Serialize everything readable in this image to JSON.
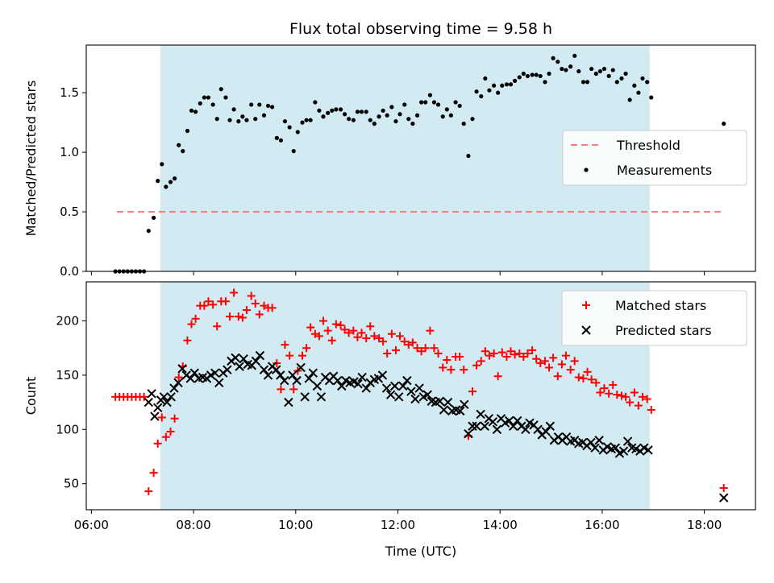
{
  "chart_data": [
    {
      "type": "scatter",
      "title": "Flux total observing time = 9.58 h",
      "ylabel": "Matched/Predicted stars",
      "xlabel": "",
      "xlim": [
        5.9,
        19.0
      ],
      "ylim": [
        0.0,
        1.9
      ],
      "yticks": [
        "0.0",
        "0.5",
        "1.0",
        "1.5"
      ],
      "ytick_values": [
        0.0,
        0.5,
        1.0,
        1.5
      ],
      "observing_window": [
        7.35,
        16.93
      ],
      "window_color": "#add8e6",
      "legend_position": "center-right",
      "threshold": {
        "name": "Threshold",
        "value": 0.5,
        "x": [
          6.5,
          18.4
        ],
        "color": "#f08080",
        "style": "dashed"
      },
      "series": [
        {
          "name": "Measurements",
          "color": "#000000",
          "x": [
            6.47,
            6.55,
            6.63,
            6.71,
            6.79,
            6.87,
            6.95,
            7.03,
            7.12,
            7.22,
            7.3,
            7.38,
            7.46,
            7.55,
            7.63,
            7.71,
            7.79,
            7.88,
            7.96,
            8.04,
            8.13,
            8.21,
            8.29,
            8.38,
            8.46,
            8.54,
            8.63,
            8.71,
            8.79,
            8.88,
            8.96,
            9.04,
            9.13,
            9.21,
            9.29,
            9.38,
            9.46,
            9.54,
            9.63,
            9.71,
            9.79,
            9.88,
            9.96,
            10.04,
            10.13,
            10.21,
            10.29,
            10.38,
            10.46,
            10.54,
            10.63,
            10.71,
            10.79,
            10.88,
            10.96,
            11.04,
            11.13,
            11.21,
            11.29,
            11.38,
            11.46,
            11.54,
            11.63,
            11.71,
            11.79,
            11.88,
            11.96,
            12.04,
            12.13,
            12.21,
            12.29,
            12.38,
            12.46,
            12.54,
            12.63,
            12.71,
            12.79,
            12.88,
            12.96,
            13.04,
            13.13,
            13.21,
            13.29,
            13.38,
            13.46,
            13.54,
            13.63,
            13.71,
            13.79,
            13.88,
            13.96,
            14.04,
            14.13,
            14.21,
            14.29,
            14.38,
            14.46,
            14.54,
            14.63,
            14.71,
            14.79,
            14.88,
            14.96,
            15.04,
            15.13,
            15.21,
            15.29,
            15.38,
            15.46,
            15.54,
            15.63,
            15.71,
            15.79,
            15.88,
            15.96,
            16.04,
            16.13,
            16.21,
            16.29,
            16.38,
            16.46,
            16.54,
            16.63,
            16.71,
            16.79,
            16.88,
            16.96,
            18.38
          ],
          "y": [
            0.0,
            0.0,
            0.0,
            0.0,
            0.0,
            0.0,
            0.0,
            0.0,
            0.34,
            0.45,
            0.76,
            0.9,
            0.71,
            0.75,
            0.78,
            1.06,
            1.01,
            1.18,
            1.35,
            1.34,
            1.41,
            1.46,
            1.46,
            1.4,
            1.28,
            1.53,
            1.46,
            1.27,
            1.36,
            1.26,
            1.3,
            1.27,
            1.4,
            1.28,
            1.4,
            1.31,
            1.39,
            1.38,
            1.12,
            1.1,
            1.26,
            1.21,
            1.01,
            1.17,
            1.25,
            1.27,
            1.27,
            1.42,
            1.35,
            1.3,
            1.33,
            1.35,
            1.36,
            1.36,
            1.32,
            1.28,
            1.27,
            1.34,
            1.34,
            1.34,
            1.27,
            1.24,
            1.3,
            1.35,
            1.31,
            1.38,
            1.26,
            1.32,
            1.4,
            1.28,
            1.24,
            1.31,
            1.42,
            1.42,
            1.48,
            1.42,
            1.4,
            1.3,
            1.36,
            1.31,
            1.42,
            1.39,
            1.24,
            0.97,
            1.28,
            1.51,
            1.47,
            1.62,
            1.52,
            1.56,
            1.5,
            1.56,
            1.57,
            1.57,
            1.6,
            1.63,
            1.66,
            1.64,
            1.65,
            1.65,
            1.64,
            1.59,
            1.66,
            1.79,
            1.76,
            1.7,
            1.69,
            1.72,
            1.81,
            1.68,
            1.59,
            1.59,
            1.7,
            1.66,
            1.68,
            1.7,
            1.64,
            1.69,
            1.59,
            1.62,
            1.66,
            1.44,
            1.56,
            1.5,
            1.62,
            1.59,
            1.46,
            1.24
          ]
        }
      ]
    },
    {
      "type": "scatter",
      "title": "",
      "ylabel": "Count",
      "xlabel": "Time (UTC)",
      "xlim": [
        5.9,
        19.0
      ],
      "ylim": [
        26,
        236
      ],
      "yticks": [
        "50",
        "100",
        "150",
        "200"
      ],
      "ytick_values": [
        50,
        100,
        150,
        200
      ],
      "xticks": [
        "06:00",
        "08:00",
        "10:00",
        "12:00",
        "14:00",
        "16:00",
        "18:00"
      ],
      "xtick_values": [
        6,
        8,
        10,
        12,
        14,
        16,
        18
      ],
      "observing_window": [
        7.35,
        16.93
      ],
      "window_color": "#add8e6",
      "legend_position": "top-right",
      "series": [
        {
          "name": "Matched stars",
          "marker": "plus",
          "color": "#ff0000",
          "x": [
            6.47,
            6.55,
            6.63,
            6.71,
            6.79,
            6.87,
            6.95,
            7.03,
            7.12,
            7.22,
            7.3,
            7.38,
            7.46,
            7.55,
            7.63,
            7.71,
            7.79,
            7.88,
            7.96,
            8.04,
            8.13,
            8.21,
            8.29,
            8.38,
            8.46,
            8.54,
            8.63,
            8.71,
            8.79,
            8.88,
            8.96,
            9.04,
            9.13,
            9.21,
            9.29,
            9.38,
            9.46,
            9.54,
            9.63,
            9.71,
            9.79,
            9.88,
            9.96,
            10.04,
            10.13,
            10.21,
            10.29,
            10.38,
            10.46,
            10.54,
            10.63,
            10.71,
            10.79,
            10.88,
            10.96,
            11.04,
            11.13,
            11.21,
            11.29,
            11.38,
            11.46,
            11.54,
            11.63,
            11.71,
            11.79,
            11.88,
            11.96,
            12.04,
            12.13,
            12.21,
            12.29,
            12.38,
            12.46,
            12.54,
            12.63,
            12.71,
            12.79,
            12.88,
            12.96,
            13.04,
            13.13,
            13.21,
            13.29,
            13.38,
            13.46,
            13.54,
            13.63,
            13.71,
            13.79,
            13.88,
            13.96,
            14.04,
            14.13,
            14.21,
            14.29,
            14.38,
            14.46,
            14.54,
            14.63,
            14.71,
            14.79,
            14.88,
            14.96,
            15.04,
            15.13,
            15.21,
            15.29,
            15.38,
            15.46,
            15.54,
            15.63,
            15.71,
            15.79,
            15.88,
            15.96,
            16.04,
            16.13,
            16.21,
            16.29,
            16.38,
            16.46,
            16.54,
            16.63,
            16.71,
            16.79,
            16.88,
            16.96,
            18.38
          ],
          "y": [
            130,
            130,
            130,
            130,
            130,
            130,
            130,
            130,
            43,
            60,
            87,
            111,
            93,
            98,
            110,
            148,
            158,
            182,
            197,
            202,
            214,
            214,
            218,
            215,
            195,
            218,
            218,
            204,
            226,
            204,
            203,
            210,
            223,
            216,
            206,
            214,
            212,
            212,
            161,
            137,
            178,
            168,
            137,
            154,
            168,
            175,
            194,
            188,
            186,
            200,
            191,
            182,
            197,
            196,
            192,
            189,
            191,
            185,
            189,
            184,
            195,
            186,
            184,
            181,
            170,
            188,
            173,
            186,
            181,
            178,
            180,
            175,
            172,
            175,
            191,
            175,
            170,
            157,
            164,
            155,
            167,
            167,
            155,
            94,
            135,
            159,
            163,
            172,
            168,
            170,
            149,
            171,
            167,
            172,
            169,
            170,
            167,
            170,
            173,
            165,
            161,
            163,
            157,
            166,
            149,
            160,
            168,
            155,
            163,
            148,
            147,
            153,
            146,
            143,
            134,
            138,
            133,
            141,
            132,
            131,
            130,
            125,
            134,
            122,
            130,
            128,
            118,
            46
          ]
        },
        {
          "name": "Predicted stars",
          "marker": "x",
          "color": "#000000",
          "x": [
            7.12,
            7.18,
            7.24,
            7.3,
            7.36,
            7.42,
            7.48,
            7.56,
            7.62,
            7.7,
            7.78,
            7.86,
            7.94,
            8.02,
            8.1,
            8.18,
            8.26,
            8.34,
            8.42,
            8.5,
            8.58,
            8.66,
            8.74,
            8.82,
            8.9,
            8.98,
            9.06,
            9.14,
            9.22,
            9.3,
            9.38,
            9.46,
            9.54,
            9.62,
            9.7,
            9.78,
            9.86,
            9.94,
            10.02,
            10.1,
            10.18,
            10.26,
            10.34,
            10.42,
            10.5,
            10.58,
            10.66,
            10.74,
            10.82,
            10.9,
            10.98,
            11.06,
            11.14,
            11.22,
            11.3,
            11.38,
            11.46,
            11.54,
            11.62,
            11.7,
            11.78,
            11.86,
            11.94,
            12.02,
            12.1,
            12.18,
            12.26,
            12.34,
            12.42,
            12.5,
            12.58,
            12.66,
            12.74,
            12.82,
            12.9,
            12.98,
            13.06,
            13.14,
            13.22,
            13.3,
            13.38,
            13.46,
            13.54,
            13.62,
            13.7,
            13.78,
            13.86,
            13.94,
            14.02,
            14.1,
            14.18,
            14.26,
            14.34,
            14.42,
            14.5,
            14.58,
            14.66,
            14.74,
            14.82,
            14.9,
            14.98,
            15.06,
            15.14,
            15.22,
            15.3,
            15.38,
            15.46,
            15.54,
            15.62,
            15.7,
            15.78,
            15.86,
            15.94,
            16.02,
            16.1,
            16.18,
            16.26,
            16.34,
            16.42,
            16.5,
            16.58,
            16.66,
            16.74,
            16.82,
            16.9,
            18.38
          ],
          "y": [
            125,
            133,
            112,
            120,
            127,
            130,
            125,
            130,
            138,
            143,
            156,
            150,
            147,
            152,
            147,
            148,
            147,
            150,
            152,
            143,
            152,
            155,
            163,
            166,
            158,
            165,
            160,
            159,
            163,
            168,
            155,
            150,
            158,
            155,
            150,
            145,
            125,
            150,
            145,
            157,
            130,
            147,
            152,
            140,
            130,
            148,
            145,
            149,
            145,
            140,
            145,
            143,
            144,
            142,
            148,
            138,
            143,
            146,
            147,
            150,
            138,
            132,
            140,
            130,
            140,
            145,
            135,
            128,
            138,
            130,
            132,
            126,
            125,
            126,
            118,
            125,
            117,
            118,
            117,
            123,
            96,
            103,
            103,
            114,
            103,
            110,
            107,
            100,
            110,
            106,
            108,
            103,
            108,
            103,
            100,
            106,
            104,
            100,
            95,
            98,
            103,
            90,
            93,
            90,
            93,
            89,
            90,
            87,
            88,
            85,
            88,
            83,
            90,
            81,
            84,
            82,
            83,
            78,
            80,
            89,
            83,
            82,
            80,
            83,
            81,
            37
          ]
        }
      ]
    }
  ]
}
